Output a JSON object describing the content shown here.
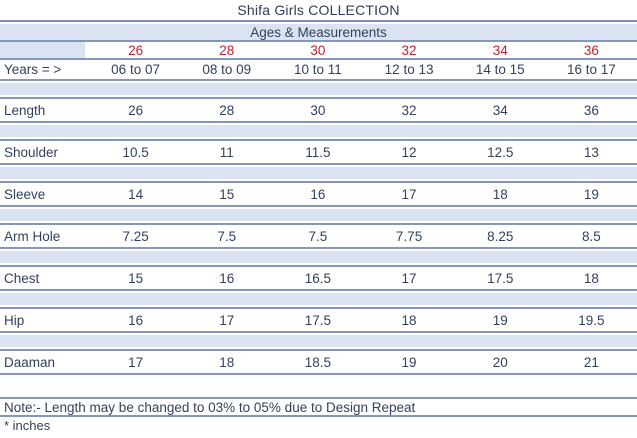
{
  "title": "Shifa Girls COLLECTION",
  "subtitle": "Ages & Measurements",
  "colors": {
    "size_header_red": "#c32032",
    "band_blue": "#dbe2f1",
    "rule_blue": "#8497ba",
    "text_navy": "#32415c"
  },
  "sizes": [
    "26",
    "28",
    "30",
    "32",
    "34",
    "36"
  ],
  "years": {
    "label": "Years = >",
    "values": [
      "06 to 07",
      "08 to 09",
      "10 to 11",
      "12 to 13",
      "14 to 15",
      "16 to 17"
    ]
  },
  "measurements": [
    {
      "label": "Length",
      "values": [
        "26",
        "28",
        "30",
        "32",
        "34",
        "36"
      ]
    },
    {
      "label": "Shoulder",
      "values": [
        "10.5",
        "11",
        "11.5",
        "12",
        "12.5",
        "13"
      ]
    },
    {
      "label": "Sleeve",
      "values": [
        "14",
        "15",
        "16",
        "17",
        "18",
        "19"
      ]
    },
    {
      "label": "Arm Hole",
      "values": [
        "7.25",
        "7.5",
        "7.5",
        "7.75",
        "8.25",
        "8.5"
      ]
    },
    {
      "label": "Chest",
      "values": [
        "15",
        "16",
        "16.5",
        "17",
        "17.5",
        "18"
      ]
    },
    {
      "label": "Hip",
      "values": [
        "16",
        "17",
        "17.5",
        "18",
        "19",
        "19.5"
      ]
    },
    {
      "label": "Daaman",
      "values": [
        "17",
        "18",
        "18.5",
        "19",
        "20",
        "21"
      ]
    }
  ],
  "note": "Note:- Length may be changed to 03% to 05% due to Design Repeat",
  "footnote": "* inches",
  "chart_data": {
    "type": "table",
    "title": "Shifa Girls COLLECTION",
    "subtitle": "Ages & Measurements",
    "categories": [
      "26",
      "28",
      "30",
      "32",
      "34",
      "36"
    ],
    "series": [
      {
        "name": "Years",
        "values": [
          "06 to 07",
          "08 to 09",
          "10 to 11",
          "12 to 13",
          "14 to 15",
          "16 to 17"
        ]
      },
      {
        "name": "Length",
        "values": [
          26,
          28,
          30,
          32,
          34,
          36
        ]
      },
      {
        "name": "Shoulder",
        "values": [
          10.5,
          11,
          11.5,
          12,
          12.5,
          13
        ]
      },
      {
        "name": "Sleeve",
        "values": [
          14,
          15,
          16,
          17,
          18,
          19
        ]
      },
      {
        "name": "Arm Hole",
        "values": [
          7.25,
          7.5,
          7.5,
          7.75,
          8.25,
          8.5
        ]
      },
      {
        "name": "Chest",
        "values": [
          15,
          16,
          16.5,
          17,
          17.5,
          18
        ]
      },
      {
        "name": "Hip",
        "values": [
          16,
          17,
          17.5,
          18,
          19,
          19.5
        ]
      },
      {
        "name": "Daaman",
        "values": [
          17,
          18,
          18.5,
          19,
          20,
          21
        ]
      }
    ],
    "units": "inches"
  }
}
